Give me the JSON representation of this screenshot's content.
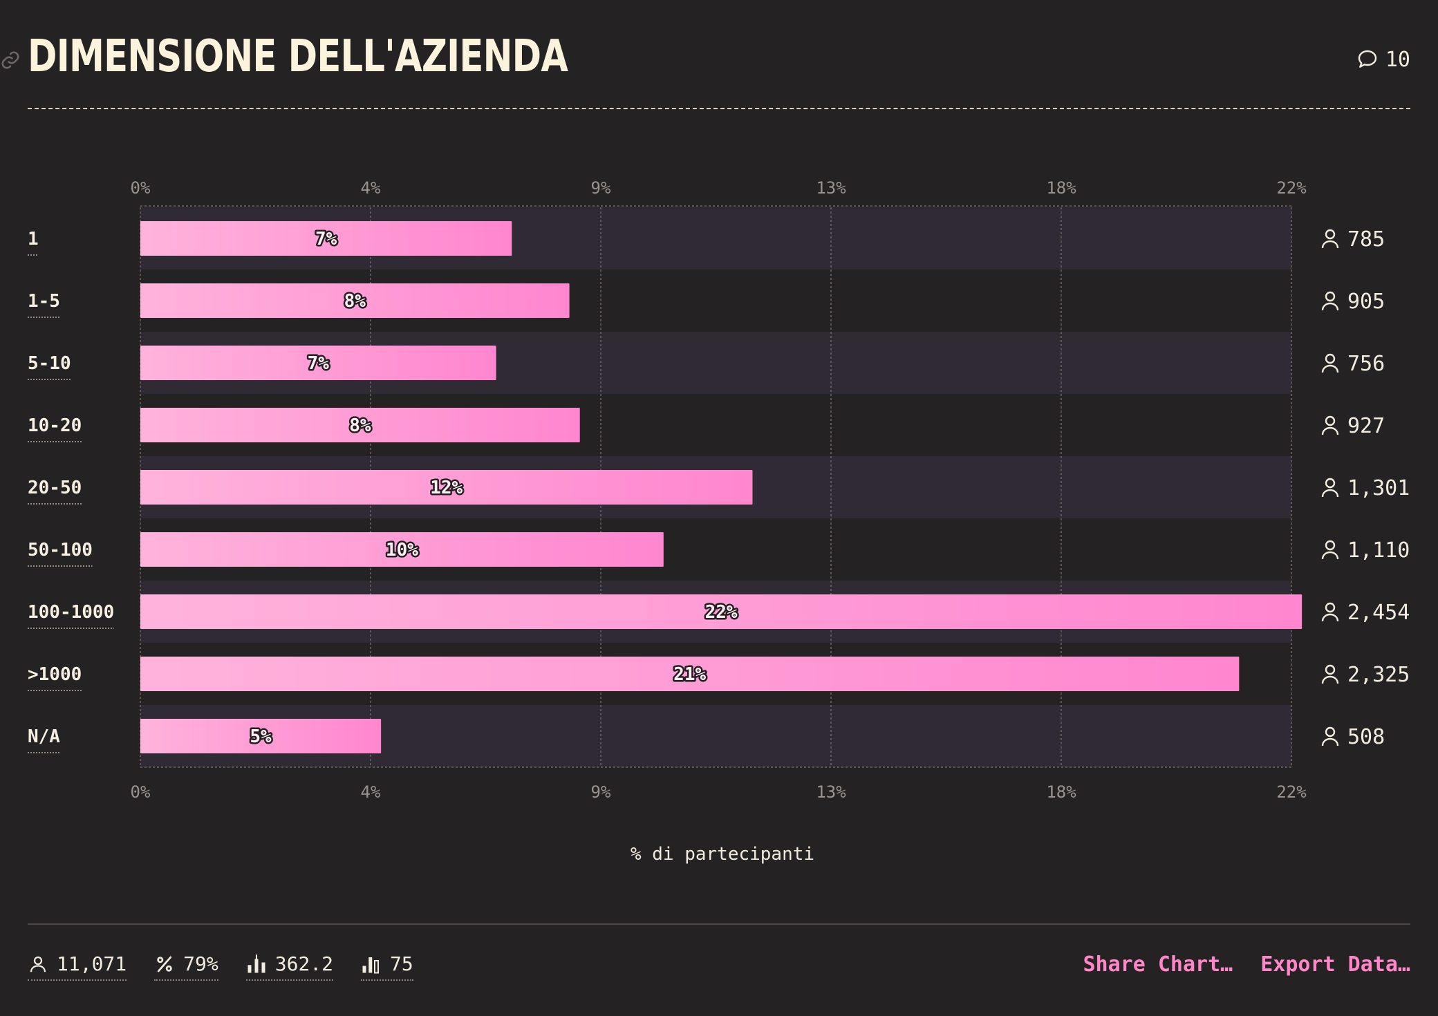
{
  "header": {
    "title": "DIMENSIONE DELL'AZIENDA",
    "comment_count": "10"
  },
  "chart_data": {
    "type": "bar",
    "orientation": "horizontal",
    "title": "DIMENSIONE DELL'AZIENDA",
    "xlabel": "% di partecipanti",
    "ylabel": "",
    "xlim": [
      0,
      22
    ],
    "x_ticks": [
      "0%",
      "4%",
      "9%",
      "13%",
      "18%",
      "22%"
    ],
    "grid": true,
    "categories": [
      "1",
      "1-5",
      "5-10",
      "10-20",
      "20-50",
      "50-100",
      "100-1000",
      ">1000",
      "N/A"
    ],
    "values": [
      7.1,
      8.2,
      6.8,
      8.4,
      11.7,
      10.0,
      22.2,
      21.0,
      4.6
    ],
    "value_labels": [
      "7%",
      "8%",
      "7%",
      "8%",
      "12%",
      "10%",
      "22%",
      "21%",
      "5%"
    ],
    "counts": [
      "785",
      "905",
      "756",
      "927",
      "1,301",
      "1,110",
      "2,454",
      "2,325",
      "508"
    ],
    "bar_color": "#ff86cf",
    "bar_color_light": "#ffb3dc"
  },
  "footer": {
    "stats": [
      {
        "icon": "user-icon",
        "value": "11,071"
      },
      {
        "icon": "percent-icon",
        "value": "79%"
      },
      {
        "icon": "bar-chart-mean-icon",
        "value": "362.2"
      },
      {
        "icon": "bar-chart-icon",
        "value": "75"
      }
    ],
    "share_label": "Share Chart…",
    "export_label": "Export Data…"
  }
}
